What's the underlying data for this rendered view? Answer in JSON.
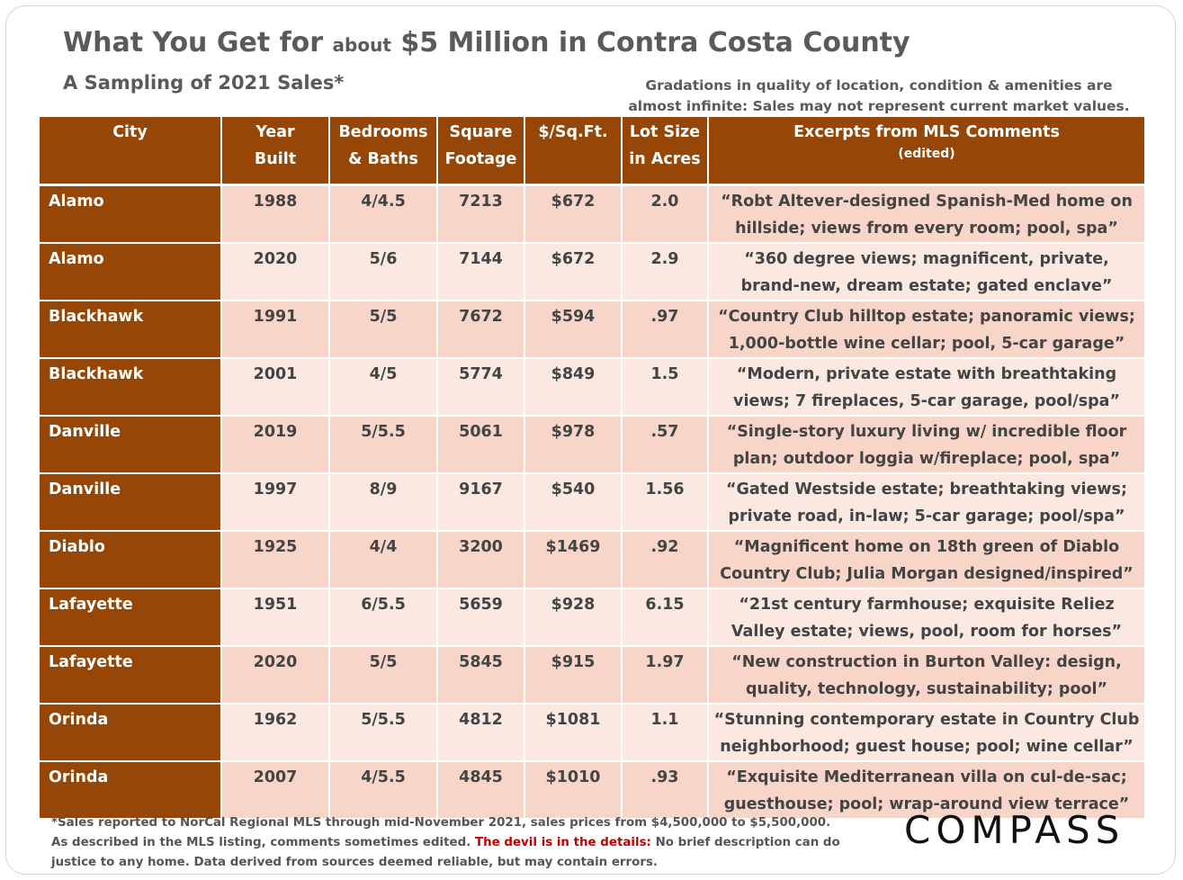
{
  "title": {
    "part1": "What You Get for ",
    "about": "about",
    "part2": " $5 Million in Contra Costa County"
  },
  "subtitle": "A Sampling of 2021 Sales*",
  "note": {
    "line1": "Gradations in quality of location, condition & amenities are",
    "line2": "almost infinite: Sales may not represent current market values."
  },
  "columns": [
    {
      "l1": "City",
      "l2": ""
    },
    {
      "l1": "Year",
      "l2": "Built"
    },
    {
      "l1": "Bedrooms",
      "l2": "& Baths"
    },
    {
      "l1": "Square",
      "l2": "Footage"
    },
    {
      "l1": "$/Sq.Ft.",
      "l2": ""
    },
    {
      "l1": "Lot Size",
      "l2": "in Acres"
    },
    {
      "l1": "Excerpts from MLS Comments",
      "l2": "(edited)"
    }
  ],
  "rows": [
    {
      "city": "Alamo",
      "year": "1988",
      "bb": "4/4.5",
      "sqft": "7213",
      "ppsf": "$672",
      "lot": "2.0",
      "comment": "“Robt Altever-designed Spanish-Med home on hillside; views from every room; pool, spa”"
    },
    {
      "city": "Alamo",
      "year": "2020",
      "bb": "5/6",
      "sqft": "7144",
      "ppsf": "$672",
      "lot": "2.9",
      "comment": "“360 degree views; magnificent, private, brand-new, dream estate; gated enclave”"
    },
    {
      "city": "Blackhawk",
      "year": "1991",
      "bb": "5/5",
      "sqft": "7672",
      "ppsf": "$594",
      "lot": ".97",
      "comment": "“Country Club hilltop estate; panoramic views; 1,000-bottle wine cellar; pool, 5-car garage”"
    },
    {
      "city": "Blackhawk",
      "year": "2001",
      "bb": "4/5",
      "sqft": "5774",
      "ppsf": "$849",
      "lot": "1.5",
      "comment": "“Modern, private estate with breathtaking views; 7 fireplaces, 5-car garage, pool/spa”"
    },
    {
      "city": "Danville",
      "year": "2019",
      "bb": "5/5.5",
      "sqft": "5061",
      "ppsf": "$978",
      "lot": ".57",
      "comment": "“Single-story luxury living w/ incredible floor plan; outdoor loggia w/fireplace; pool, spa”"
    },
    {
      "city": "Danville",
      "year": "1997",
      "bb": "8/9",
      "sqft": "9167",
      "ppsf": "$540",
      "lot": "1.56",
      "comment": "“Gated Westside estate; breathtaking views; private road, in-law; 5-car garage; pool/spa”"
    },
    {
      "city": "Diablo",
      "year": "1925",
      "bb": "4/4",
      "sqft": "3200",
      "ppsf": "$1469",
      "lot": ".92",
      "comment": "“Magnificent home on 18th green of Diablo Country Club; Julia Morgan designed/inspired”"
    },
    {
      "city": "Lafayette",
      "year": "1951",
      "bb": "6/5.5",
      "sqft": "5659",
      "ppsf": "$928",
      "lot": "6.15",
      "comment": "“21st century farmhouse; exquisite Reliez Valley estate; views, pool, room for horses”"
    },
    {
      "city": "Lafayette",
      "year": "2020",
      "bb": "5/5",
      "sqft": "5845",
      "ppsf": "$915",
      "lot": "1.97",
      "comment": "“New construction in Burton Valley: design, quality, technology, sustainability; pool”"
    },
    {
      "city": "Orinda",
      "year": "1962",
      "bb": "5/5.5",
      "sqft": "4812",
      "ppsf": "$1081",
      "lot": "1.1",
      "comment": "“Stunning contemporary estate in Country Club neighborhood; guest house; pool; wine cellar”"
    },
    {
      "city": "Orinda",
      "year": "2007",
      "bb": "4/5.5",
      "sqft": "4845",
      "ppsf": "$1010",
      "lot": ".93",
      "comment": "“Exquisite Mediterranean villa on cul-de-sac; guesthouse; pool; wrap-around view terrace”"
    }
  ],
  "footnote": {
    "line1": "*Sales reported to NorCal Regional MLS through mid-November 2021, sales prices from $4,500,000 to $5,500,000.",
    "line2a": "As described in the MLS listing, comments sometimes edited. ",
    "line2red": "The devil is in the details:",
    "line2b": " No brief description can do",
    "line3": "justice to any home. Data derived from sources deemed reliable, but may contain errors."
  },
  "logo": "COMPASS",
  "colors": {
    "header_brown": "#964607",
    "row_odd": "#f8d5c9",
    "row_even": "#fbe8e1",
    "emphasis_red": "#c00000"
  }
}
